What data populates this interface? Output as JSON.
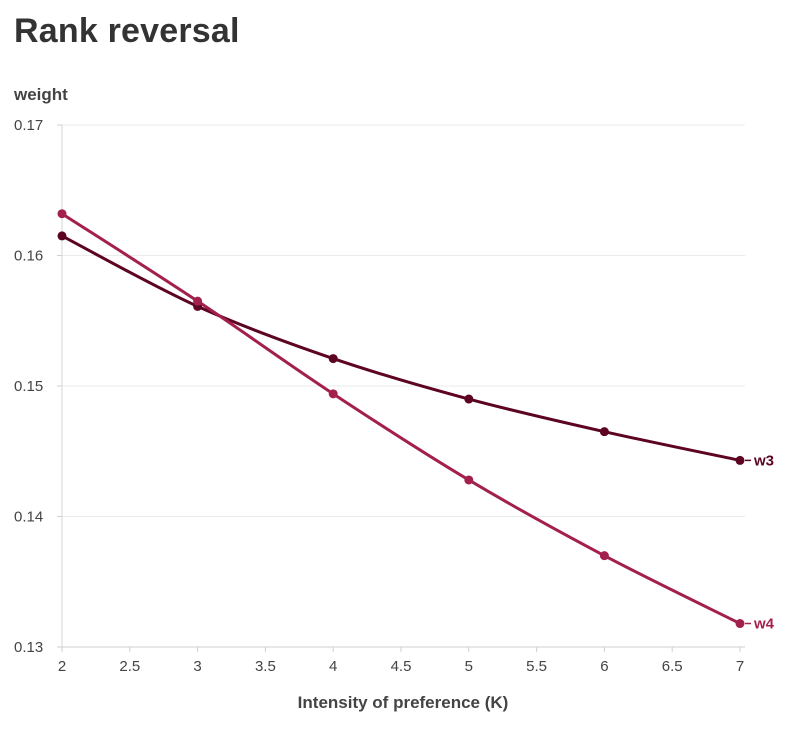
{
  "title": "Rank reversal",
  "chart_data": {
    "type": "line",
    "title": "Rank reversal",
    "xlabel": "Intensity of preference (K)",
    "ylabel": "weight",
    "xlim": [
      2,
      7
    ],
    "ylim": [
      0.13,
      0.17
    ],
    "xticks": [
      "2",
      "2.5",
      "3",
      "3.5",
      "4",
      "4.5",
      "5",
      "5.5",
      "6",
      "6.5",
      "7"
    ],
    "yticks": [
      "0.13",
      "0.14",
      "0.15",
      "0.16",
      "0.17"
    ],
    "grid": true,
    "x": [
      2,
      3,
      4,
      5,
      6,
      7
    ],
    "series": [
      {
        "name": "w3",
        "color": "#5c0420",
        "values": [
          0.1615,
          0.1561,
          0.1521,
          0.149,
          0.1465,
          0.1443
        ]
      },
      {
        "name": "w4",
        "color": "#a3204e",
        "values": [
          0.1632,
          0.1565,
          0.1494,
          0.1428,
          0.137,
          0.1318
        ]
      }
    ]
  }
}
